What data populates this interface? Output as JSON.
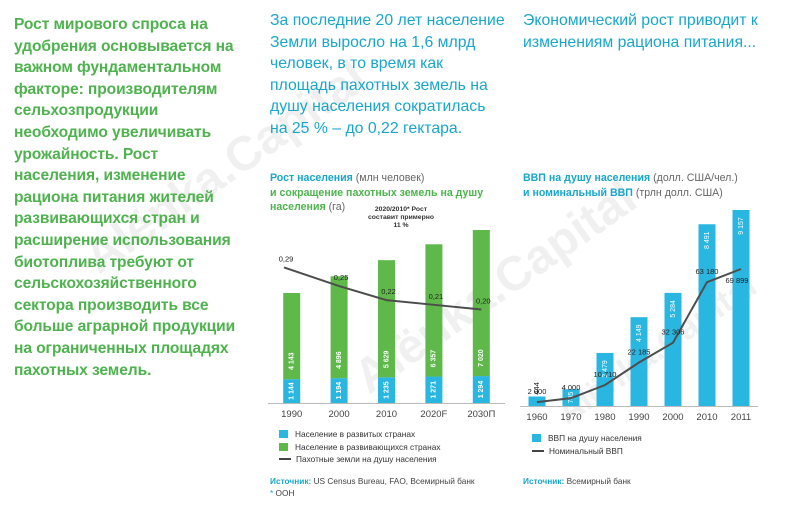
{
  "left_text": "Рост мирового спроса на удобрения основывается на важном фундаментальном факторе: производителям сельхозпродукции необходимо увеличивать урожайность. Рост населения, изменение рациона питания жителей развивающихся стран и расширение использования биотоплива требуют от сельскохозяйственного сектора производить все больше аграрной продукции на ограниченных площадях пахотных земель.",
  "col2_heading": "За последние 20 лет население Земли выросло на 1,6 млрд человек, в то время как площадь пахотных земель на душу населения сократилась на 25 % – до 0,22 гектара.",
  "col3_heading": "Экономический рост приводит к изменениям рациона питания...",
  "watermark": "Alёnka.Capital",
  "colors": {
    "blue": "#29b6e0",
    "green": "#5fb84a",
    "line": "#4d4d4d",
    "text_blue": "#1aa6c9",
    "text_green": "#4fb24f"
  },
  "chart_data": [
    {
      "type": "bar",
      "subtitle_part1": "Рост населения",
      "subtitle_unit1": "(млн человек)",
      "subtitle_part2": "и сокращение пахотных земель на душу населения",
      "subtitle_unit2": "(га)",
      "note": "2020/2010* Рост составит примерно 11 %",
      "categories": [
        "1990",
        "2000",
        "2010",
        "2020F",
        "2030П"
      ],
      "series": [
        {
          "name": "Население в развитых странах",
          "values": [
            1144,
            1194,
            1235,
            1271,
            1294
          ],
          "labels": [
            "1 144",
            "1 194",
            "1 235",
            "1 271",
            "1 294"
          ]
        },
        {
          "name": "Население в развивающихся странах",
          "values": [
            4143,
            4896,
            5629,
            6357,
            7020
          ],
          "labels": [
            "4 143",
            "4 896",
            "5 629",
            "6 357",
            "7 020"
          ]
        },
        {
          "name": "Пахотные земли на душу населения",
          "values": [
            0.29,
            0.25,
            0.22,
            0.21,
            0.2
          ],
          "labels": [
            "0,29",
            "0,25",
            "0,22",
            "0,21",
            "0,20"
          ]
        }
      ],
      "source_label": "Источник:",
      "source_text": "US Census Bureau, FAO, Всемирный банк",
      "footnote_mark": "*",
      "footnote_text": "ООН"
    },
    {
      "type": "bar",
      "subtitle_part1": "ВВП на душу населения",
      "subtitle_unit1": "(долл. США/чел.)",
      "subtitle_part2": "и номинальный ВВП",
      "subtitle_unit2": "(трлн долл. США)",
      "categories": [
        "1960",
        "1970",
        "1980",
        "1990",
        "2000",
        "2010",
        "2011"
      ],
      "series": [
        {
          "name": "ВВП на душу населения",
          "values": [
            444,
            785,
            2479,
            4149,
            5284,
            8491,
            9157
          ],
          "labels": [
            "444",
            "785",
            "2 479",
            "4 149",
            "5 284",
            "8 491",
            "9 157"
          ]
        },
        {
          "name": "Номинальный ВВП",
          "values": [
            2000,
            4000,
            10710,
            22185,
            32306,
            63180,
            69899
          ],
          "labels": [
            "2 000",
            "4 000",
            "10 710",
            "22 185",
            "32 306",
            "63 180",
            "69 899"
          ]
        }
      ],
      "source_label": "Источник:",
      "source_text": "Всемирный банк"
    }
  ]
}
